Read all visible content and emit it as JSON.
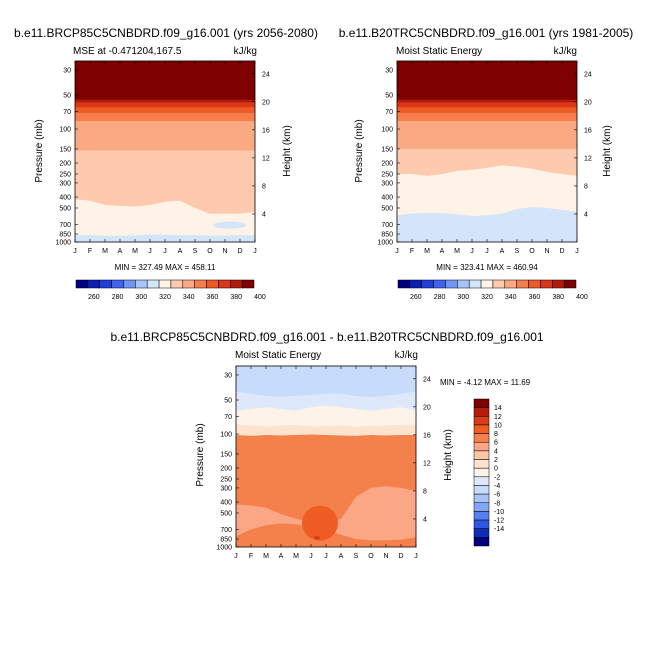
{
  "chart_data": [
    {
      "type": "heatmap",
      "title": "b.e11.BRCP85C5CNBDRD.f09_g16.001 (yrs 2056-2080)",
      "subtitle_left": "MSE at -0.471204,167.5",
      "subtitle_right": "kJ/kg",
      "ylabel": "Pressure (mb)",
      "ylabel_right": "Height (km)",
      "stats": "MIN = 327.49 MAX = 458.11",
      "x_ticks": [
        "J",
        "F",
        "M",
        "A",
        "M",
        "J",
        "J",
        "A",
        "S",
        "O",
        "N",
        "D",
        "J"
      ],
      "pressure_ticks": [
        30,
        50,
        70,
        100,
        150,
        200,
        250,
        300,
        400,
        500,
        700,
        850,
        1000
      ],
      "height_ticks": [
        4,
        8,
        12,
        16,
        20,
        24
      ],
      "levels": [
        260,
        270,
        280,
        290,
        300,
        310,
        320,
        330,
        340,
        350,
        360,
        370,
        380,
        390,
        400
      ],
      "band_tops_mb": {
        "400": 47,
        "390": 55,
        "380": 58,
        "370": 64,
        "360": 72,
        "350": 85,
        "340": 155
      },
      "layers": [
        {
          "level": "330",
          "top_mb": [
            420,
            430,
            470,
            480,
            485,
            470,
            440,
            430,
            500,
            560,
            560,
            560,
            540
          ]
        },
        {
          "level": "320",
          "top_mb": [
            870,
            870,
            880,
            880,
            870,
            860,
            860,
            870,
            870,
            880,
            875,
            870,
            870
          ]
        }
      ],
      "pockets": [
        {
          "level": "320",
          "months": [
            9.2,
            11.4
          ],
          "range_mb": [
            660,
            760
          ]
        }
      ]
    },
    {
      "type": "heatmap",
      "title": "b.e11.B20TRC5CNBDRD.f09_g16.001 (yrs 1981-2005)",
      "subtitle_left": "Moist Static Energy",
      "subtitle_right": "kJ/kg",
      "ylabel": "Pressure (mb)",
      "ylabel_right": "Height (km)",
      "stats": "MIN = 323.41 MAX = 460.94",
      "x_ticks": [
        "J",
        "F",
        "M",
        "A",
        "M",
        "J",
        "J",
        "A",
        "S",
        "O",
        "N",
        "D",
        "J"
      ],
      "pressure_ticks": [
        30,
        50,
        70,
        100,
        150,
        200,
        250,
        300,
        400,
        500,
        700,
        850,
        1000
      ],
      "height_ticks": [
        4,
        8,
        12,
        16,
        20,
        24
      ],
      "levels": [
        260,
        270,
        280,
        290,
        300,
        310,
        320,
        330,
        340,
        350,
        360,
        370,
        380,
        390,
        400
      ],
      "band_tops_mb": {
        "400": 47,
        "390": 55,
        "380": 58,
        "370": 64,
        "360": 72,
        "350": 85,
        "340": 150
      },
      "layers": [
        {
          "level": "330",
          "top_mb": [
            250,
            250,
            260,
            250,
            235,
            230,
            220,
            210,
            215,
            225,
            240,
            250,
            260
          ]
        },
        {
          "level": "320",
          "top_mb": [
            580,
            560,
            550,
            555,
            570,
            590,
            580,
            560,
            510,
            490,
            500,
            520,
            540
          ]
        },
        {
          "level": "330b",
          "top_mb": [
            870,
            870,
            880,
            880,
            870,
            860,
            860,
            870,
            870,
            880,
            875,
            870,
            870
          ]
        }
      ],
      "pockets": []
    },
    {
      "type": "heatmap",
      "title": "b.e11.BRCP85C5CNBDRD.f09_g16.001 - b.e11.B20TRC5CNBDRD.f09_g16.001",
      "subtitle_left": "Moist Static Energy",
      "subtitle_right": "kJ/kg",
      "ylabel": "Pressure (mb)",
      "ylabel_right": "Height (km)",
      "stats": "MIN =  -4.12 MAX =  11.69",
      "x_ticks": [
        "J",
        "F",
        "M",
        "A",
        "M",
        "J",
        "J",
        "A",
        "S",
        "O",
        "N",
        "D",
        "J"
      ],
      "pressure_ticks": [
        30,
        50,
        70,
        100,
        150,
        200,
        250,
        300,
        400,
        500,
        700,
        850,
        1000
      ],
      "height_ticks": [
        4,
        8,
        12,
        16,
        20,
        24
      ],
      "levels": [
        -14,
        -12,
        -10,
        -8,
        -6,
        -4,
        -2,
        0,
        2,
        4,
        6,
        8,
        10,
        12,
        14
      ],
      "base_level": "-2",
      "layers": [
        {
          "level": "-1",
          "top_mb": [
            42,
            44,
            46,
            47,
            46,
            45,
            44,
            44,
            46,
            47,
            46,
            44,
            42
          ]
        },
        {
          "level": "1",
          "top_mb": [
            62,
            60,
            58,
            60,
            62,
            58,
            56,
            58,
            60,
            62,
            60,
            58,
            62
          ]
        },
        {
          "level": "3",
          "top_mb": [
            82,
            84,
            86,
            84,
            83,
            86,
            85,
            84,
            86,
            85,
            84,
            83,
            82
          ]
        },
        {
          "level": "7",
          "top_mb": [
            102,
            104,
            102,
            103,
            102,
            101,
            102,
            103,
            104,
            102,
            103,
            102,
            102
          ]
        },
        {
          "level": "5",
          "top_mb": [
            420,
            430,
            450,
            510,
            560,
            620,
            650,
            560,
            360,
            300,
            290,
            300,
            320
          ]
        },
        {
          "level": "7b",
          "top_mb": [
            800,
            700,
            640,
            620,
            630,
            660,
            700,
            780,
            850,
            870,
            870,
            860,
            820
          ]
        }
      ],
      "pockets": [
        {
          "level": "9",
          "months": [
            4.4,
            6.8
          ],
          "range_mb": [
            430,
            880
          ]
        },
        {
          "level": "11",
          "months": [
            5.2,
            5.6
          ],
          "range_mb": [
            800,
            860
          ]
        }
      ]
    }
  ],
  "colorbars": [
    {
      "labels": [
        "260",
        "280",
        "300",
        "320",
        "340",
        "360",
        "380",
        "400"
      ]
    },
    {
      "labels": [
        "260",
        "280",
        "300",
        "320",
        "340",
        "360",
        "380",
        "400"
      ]
    },
    {
      "labels": [
        "14",
        "12",
        "10",
        "8",
        "6",
        "4",
        "2",
        "0",
        "-2",
        "-4",
        "-6",
        "-8",
        "-10",
        "-12",
        "-14"
      ]
    }
  ],
  "colors": {
    "300": "#2a3fe0",
    "310": "#5b7ff0",
    "320": "#d2e5f9",
    "330": "#fff2e6",
    "340": "#fdcaad",
    "350": "#fba982",
    "360": "#f57e4a",
    "370": "#ec5a26",
    "380": "#d9361a",
    "390": "#b31a0c",
    "400": "#7f0000",
    "-14": "#000080",
    "-12": "#0e2eb9",
    "-10": "#2f56e2",
    "-8": "#5980f0",
    "-6": "#84a7f5",
    "-4": "#a9c5f7",
    "-2": "#c7dbfa",
    "-1": "#dde9fb",
    "0": "#fdf3e8",
    "1": "#fdf3e8",
    "2": "#fde3ce",
    "3": "#fde3ce",
    "4": "#fcc6a7",
    "5": "#fba785",
    "6": "#fba785",
    "7": "#f4814c",
    "7b": "#f4814c",
    "8": "#f4814c",
    "9": "#ef5d25",
    "10": "#ef5d25",
    "11": "#d93b1b",
    "12": "#d93b1b",
    "14": "#7f0000",
    "330b": "#d2e5f9"
  }
}
